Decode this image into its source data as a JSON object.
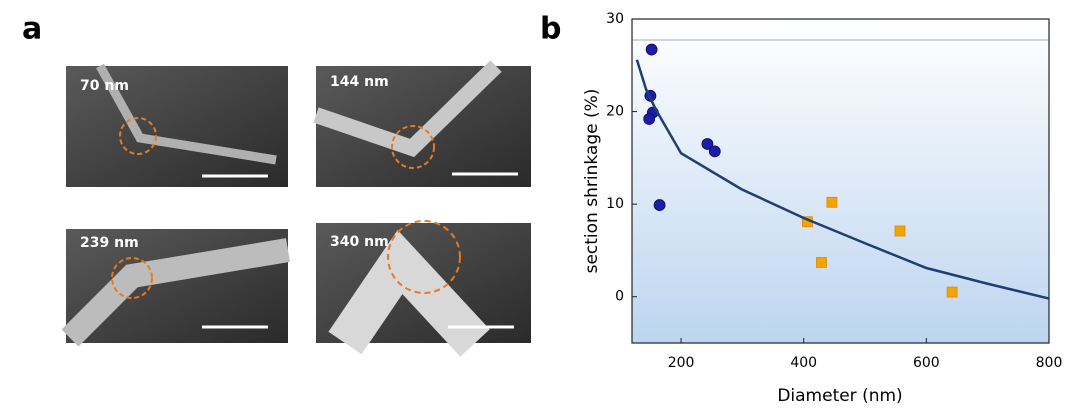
{
  "panel_labels": [
    "a",
    "b"
  ],
  "images": [
    {
      "label": "70 nm"
    },
    {
      "label": "144 nm"
    },
    {
      "label": "239 nm"
    },
    {
      "label": "340 nm"
    }
  ],
  "chart_data": {
    "type": "scatter",
    "xlabel": "Diameter (nm)",
    "ylabel": "section shrinkage (%)",
    "xlim": [
      120,
      800
    ],
    "ylim": [
      -5,
      30
    ],
    "xticks": [
      200,
      400,
      600,
      800
    ],
    "yticks": [
      0,
      10,
      20,
      30
    ],
    "grid": false,
    "series": [
      {
        "kind": "scatter",
        "marker": "circle",
        "color": "#1c1ca8",
        "x": [
          152,
          150,
          154,
          148,
          243,
          255,
          165
        ],
        "values": [
          26.7,
          21.7,
          19.9,
          19.2,
          16.5,
          15.7,
          9.9
        ]
      },
      {
        "kind": "scatter",
        "marker": "square",
        "color": "#f5a300",
        "x": [
          406,
          446,
          429,
          557,
          642
        ],
        "values": [
          8.1,
          10.2,
          3.7,
          7.1,
          0.5
        ]
      },
      {
        "kind": "line",
        "color": "#1f3f73",
        "x": [
          128,
          143,
          159,
          200,
          299,
          400,
          499,
          600,
          700,
          800
        ],
        "values": [
          25.6,
          22.4,
          20.2,
          15.5,
          11.6,
          8.5,
          5.8,
          3.1,
          1.4,
          -0.2
        ]
      }
    ]
  }
}
